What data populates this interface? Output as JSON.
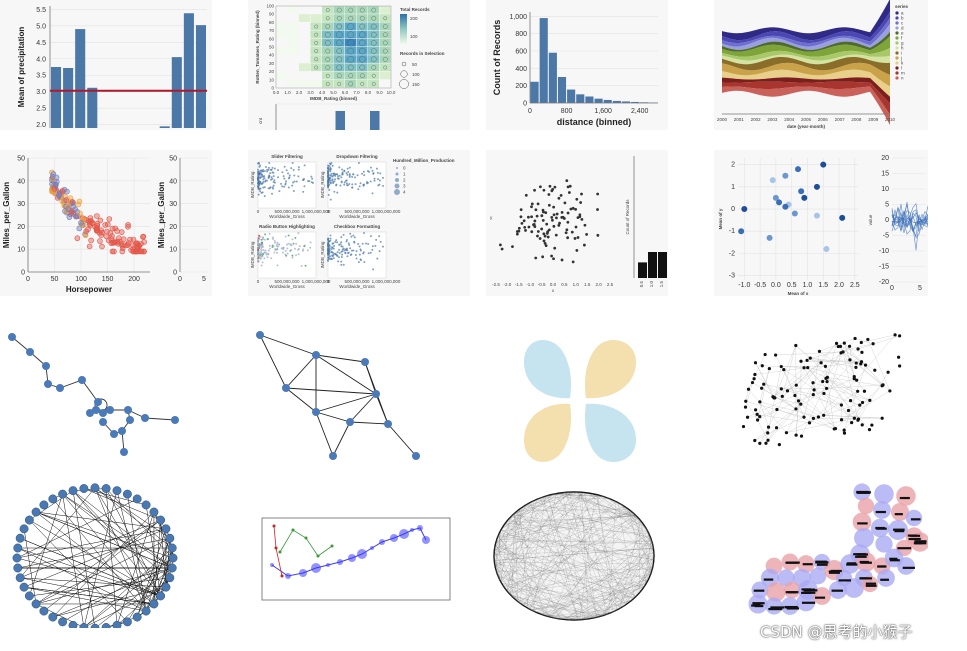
{
  "watermark": "CSDN @思考的小猴子",
  "colors": {
    "vega_blue": "#4c78a8",
    "rule_red": "#b2182b",
    "node_blue": "#4a7ab8",
    "yellow_petal": "#f4dfae",
    "blue_petal": "#c6e3f0",
    "word_red": "#e9a3a8",
    "word_purple": "#aaaaf3",
    "path_purple": "#3b3bff",
    "path_green": "#3a9a3a",
    "path_red": "#cc2222"
  },
  "chart_data": [
    {
      "id": "precip",
      "type": "bar",
      "ylabel": "Mean of precipitation",
      "yticks": [
        "2.0",
        "2.5",
        "3.0",
        "3.5",
        "4.0",
        "4.5",
        "5.0",
        "5.5"
      ],
      "ylim": [
        1.9,
        5.6
      ],
      "values": [
        3.75,
        3.72,
        4.9,
        3.12,
        null,
        null,
        null,
        null,
        null,
        1.95,
        4.05,
        5.38,
        5.02
      ],
      "rule_value": 3.03
    },
    {
      "id": "heatmap",
      "type": "heatmap",
      "ylabel": "Rotten_Tomatoes_Rating (binned)",
      "xlabel": "IMDB_Rating (binned)",
      "legend_title": "Total Records",
      "legend_ticks": [
        "100",
        "200"
      ],
      "legend2_title": "Records in Selection",
      "legend2_items": [
        "50",
        "100",
        "150"
      ],
      "xticks": [
        "0.0",
        "1.0",
        "2.0",
        "3.0",
        "4.0",
        "5.0",
        "6.0",
        "7.0",
        "8.0",
        "9.0",
        "10.0"
      ],
      "yticks": [
        "0",
        "10",
        "20",
        "30",
        "40",
        "50",
        "60",
        "70",
        "80",
        "90",
        "100"
      ],
      "bottom_bars": [
        0,
        0,
        0,
        0,
        0,
        1,
        0,
        0,
        1,
        0
      ],
      "bottom_ylabel": "cnt"
    },
    {
      "id": "histogram",
      "type": "bar",
      "ylabel": "Count of Records",
      "xlabel": "distance (binned)",
      "yticks": [
        "0",
        "200",
        "400",
        "600",
        "800",
        "1,000"
      ],
      "xticks": [
        "0",
        "800",
        "1,600",
        "2,400"
      ],
      "ylim": [
        0,
        1050
      ],
      "bin_edges": [
        0,
        200,
        400,
        600,
        800,
        1000,
        1200,
        1400,
        1600,
        1800,
        2000,
        2200,
        2400,
        2600,
        2800
      ],
      "values": [
        245,
        980,
        580,
        300,
        155,
        100,
        75,
        50,
        35,
        24,
        18,
        12,
        8,
        5
      ]
    },
    {
      "id": "streamgraph",
      "type": "area",
      "xlabel": "date (year-month)",
      "legend_title": "series",
      "xticks": [
        "2000",
        "2001",
        "2002",
        "2003",
        "2004",
        "2005",
        "2006",
        "2007",
        "2008",
        "2009",
        "2010"
      ],
      "legend_items": [
        "a",
        "b",
        "c",
        "d",
        "e",
        "f",
        "g",
        "h",
        "i",
        "j",
        "k",
        "l",
        "m",
        "n"
      ]
    },
    {
      "id": "cars",
      "type": "scatter",
      "ylabel": "Miles_per_Gallon",
      "xlabel": "Horsepower",
      "xticks": [
        "0",
        "50",
        "100",
        "150",
        "200"
      ],
      "yticks": [
        "0",
        "10",
        "20",
        "30",
        "40",
        "50"
      ],
      "xlim": [
        0,
        230
      ],
      "ylim": [
        0,
        50
      ],
      "side_ylabel": "Miles_per_Gallon",
      "side_yticks": [
        "0",
        "10",
        "20",
        "30",
        "40",
        "50"
      ],
      "side_xticks": [
        "0",
        "5"
      ]
    },
    {
      "id": "movies_grid",
      "type": "scatter",
      "titles": [
        "Slider Filtering",
        "Dropdown Filtering",
        "Radio Button Highlighting",
        "Checkbox Formatting"
      ],
      "ylabel": "IMDB_Rating",
      "xlabel": "Worldwide_Gross",
      "xticks": [
        "0",
        "500,000,000",
        "1,000,000,000"
      ],
      "yticks": [
        "2",
        "4",
        "6",
        "8",
        "10"
      ],
      "legend_title": "Hundred_Million_Production",
      "legend_items": [
        "0",
        "1",
        "2",
        "3",
        "4"
      ]
    },
    {
      "id": "random_scatter",
      "type": "scatter",
      "xlabel": "x",
      "ylabel": "y",
      "xticks": [
        "-2.5",
        "-2.0",
        "-1.5",
        "-1.0",
        "-0.5",
        "0.0",
        "0.5",
        "1.0",
        "1.5",
        "2.0",
        "2.5"
      ],
      "bar_ylabel": "Count of Records",
      "bar_values": [
        3,
        5,
        5
      ],
      "bar_xticks": [
        "0.5",
        "1.0",
        "1.5"
      ]
    },
    {
      "id": "mean_scatter",
      "type": "scatter",
      "xlabel": "Mean of x",
      "ylabel": "Mean of y",
      "xticks": [
        "-1.0",
        "-0.5",
        "0.0",
        "0.5",
        "1.0",
        "1.5",
        "2.0",
        "2.5"
      ],
      "yticks": [
        "-3",
        "-2",
        "-1",
        "0",
        "1",
        "2"
      ],
      "side_ylabel": "value",
      "side_yticks": [
        "-20",
        "-15",
        "-10",
        "-5",
        "0",
        "5",
        "10",
        "15",
        "20"
      ],
      "side_xticks": [
        "0",
        "5"
      ]
    }
  ]
}
